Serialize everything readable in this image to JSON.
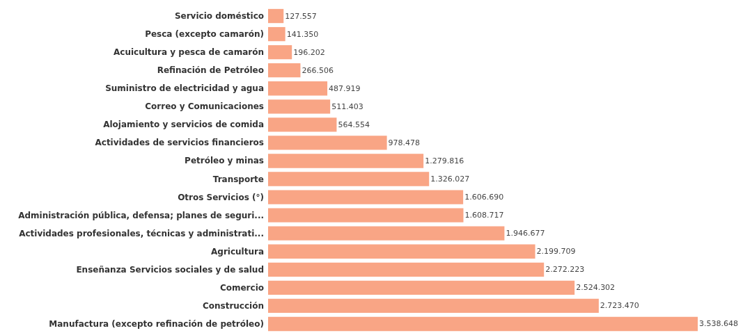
{
  "chart_data": {
    "type": "bar",
    "orientation": "horizontal",
    "categories": [
      "Servicio doméstico",
      "Pesca (excepto camarón)",
      "Acuicultura y pesca de camarón",
      "Refinación de Petróleo",
      "Suministro de electricidad y agua",
      "Correo y Comunicaciones",
      "Alojamiento y servicios de comida",
      "Actividades de servicios financieros",
      "Petróleo y minas",
      "Transporte",
      "Otros Servicios (°)",
      "Administración pública, defensa; planes de seguri...",
      "Actividades profesionales, técnicas y administrati...",
      "Agricultura",
      "Enseñanza Servicios sociales y de salud",
      "Comercio",
      "Construcción",
      "Manufactura (excepto refinación de petróleo)"
    ],
    "values": [
      127557,
      141350,
      196202,
      266506,
      487919,
      511403,
      564554,
      978478,
      1279816,
      1326027,
      1606690,
      1608717,
      1946677,
      2199709,
      2272223,
      2524302,
      2723470,
      3538648
    ],
    "value_labels": [
      "127.557",
      "141.350",
      "196.202",
      "266.506",
      "487.919",
      "511.403",
      "564.554",
      "978.478",
      "1.279.816",
      "1.326.027",
      "1.606.690",
      "1.608.717",
      "1.946.677",
      "2.199.709",
      "2.272.223",
      "2.524.302",
      "2.723.470",
      "3.538.648"
    ],
    "color": "#f9a585"
  }
}
